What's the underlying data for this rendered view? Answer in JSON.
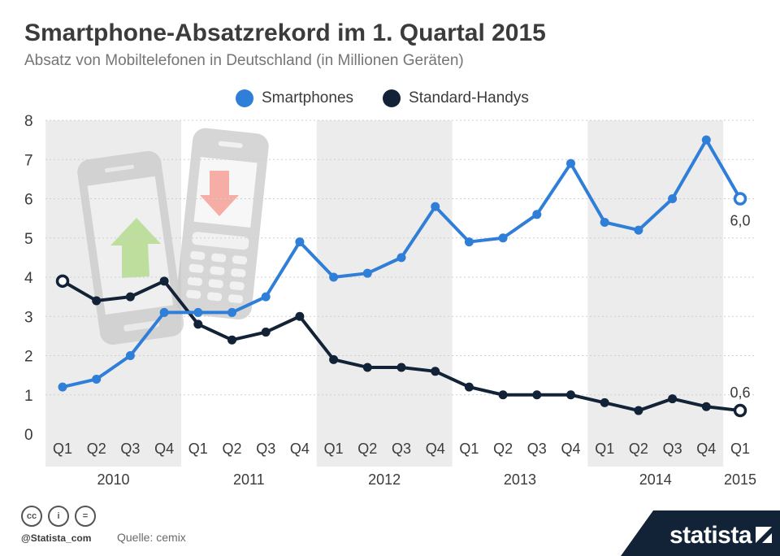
{
  "title": "Smartphone-Absatzrekord im 1. Quartal 2015",
  "subtitle": "Absatz von Mobiltelefonen in Deutschland (in Millionen Geräten)",
  "footer": {
    "handle": "@Statista_com",
    "source": "Quelle: cemix",
    "brand": "statista",
    "cc_icons": [
      "cc-icon",
      "by-icon",
      "nd-icon"
    ],
    "cc_labels": [
      "cc",
      "i",
      "="
    ]
  },
  "colors": {
    "smartphones": "#2f7ed8",
    "standard": "#132337",
    "band": "#ececec",
    "grid": "#cfcfcf",
    "brand_bg": "#132337"
  },
  "chart_data": {
    "type": "line",
    "categories": [
      "Q1",
      "Q2",
      "Q3",
      "Q4",
      "Q1",
      "Q2",
      "Q3",
      "Q4",
      "Q1",
      "Q2",
      "Q3",
      "Q4",
      "Q1",
      "Q2",
      "Q3",
      "Q4",
      "Q1",
      "Q2",
      "Q3",
      "Q4",
      "Q1"
    ],
    "years": [
      {
        "label": "2010",
        "start": 0,
        "end": 3,
        "shaded": true
      },
      {
        "label": "2011",
        "start": 4,
        "end": 7,
        "shaded": false
      },
      {
        "label": "2012",
        "start": 8,
        "end": 11,
        "shaded": true
      },
      {
        "label": "2013",
        "start": 12,
        "end": 15,
        "shaded": false
      },
      {
        "label": "2014",
        "start": 16,
        "end": 19,
        "shaded": true
      },
      {
        "label": "2015",
        "start": 20,
        "end": 20,
        "shaded": false
      }
    ],
    "series": [
      {
        "name": "Smartphones",
        "color": "#2f7ed8",
        "values": [
          1.2,
          1.4,
          2.0,
          3.1,
          3.1,
          3.1,
          3.5,
          4.9,
          4.0,
          4.1,
          4.5,
          5.8,
          4.9,
          5.0,
          5.6,
          6.9,
          5.4,
          5.2,
          6.0,
          7.5,
          6.0
        ],
        "end_label": "6,0"
      },
      {
        "name": "Standard-Handys",
        "color": "#132337",
        "values": [
          3.9,
          3.4,
          3.5,
          3.9,
          2.8,
          2.4,
          2.6,
          3.0,
          1.9,
          1.7,
          1.7,
          1.6,
          1.2,
          1.0,
          1.0,
          1.0,
          0.8,
          0.6,
          0.9,
          0.7,
          0.6
        ],
        "end_label": "0,6"
      }
    ],
    "ylim": [
      0,
      8
    ],
    "yticks": [
      0,
      1,
      2,
      3,
      4,
      5,
      6,
      7,
      8
    ],
    "grid": true,
    "legend_position": "top-center"
  }
}
